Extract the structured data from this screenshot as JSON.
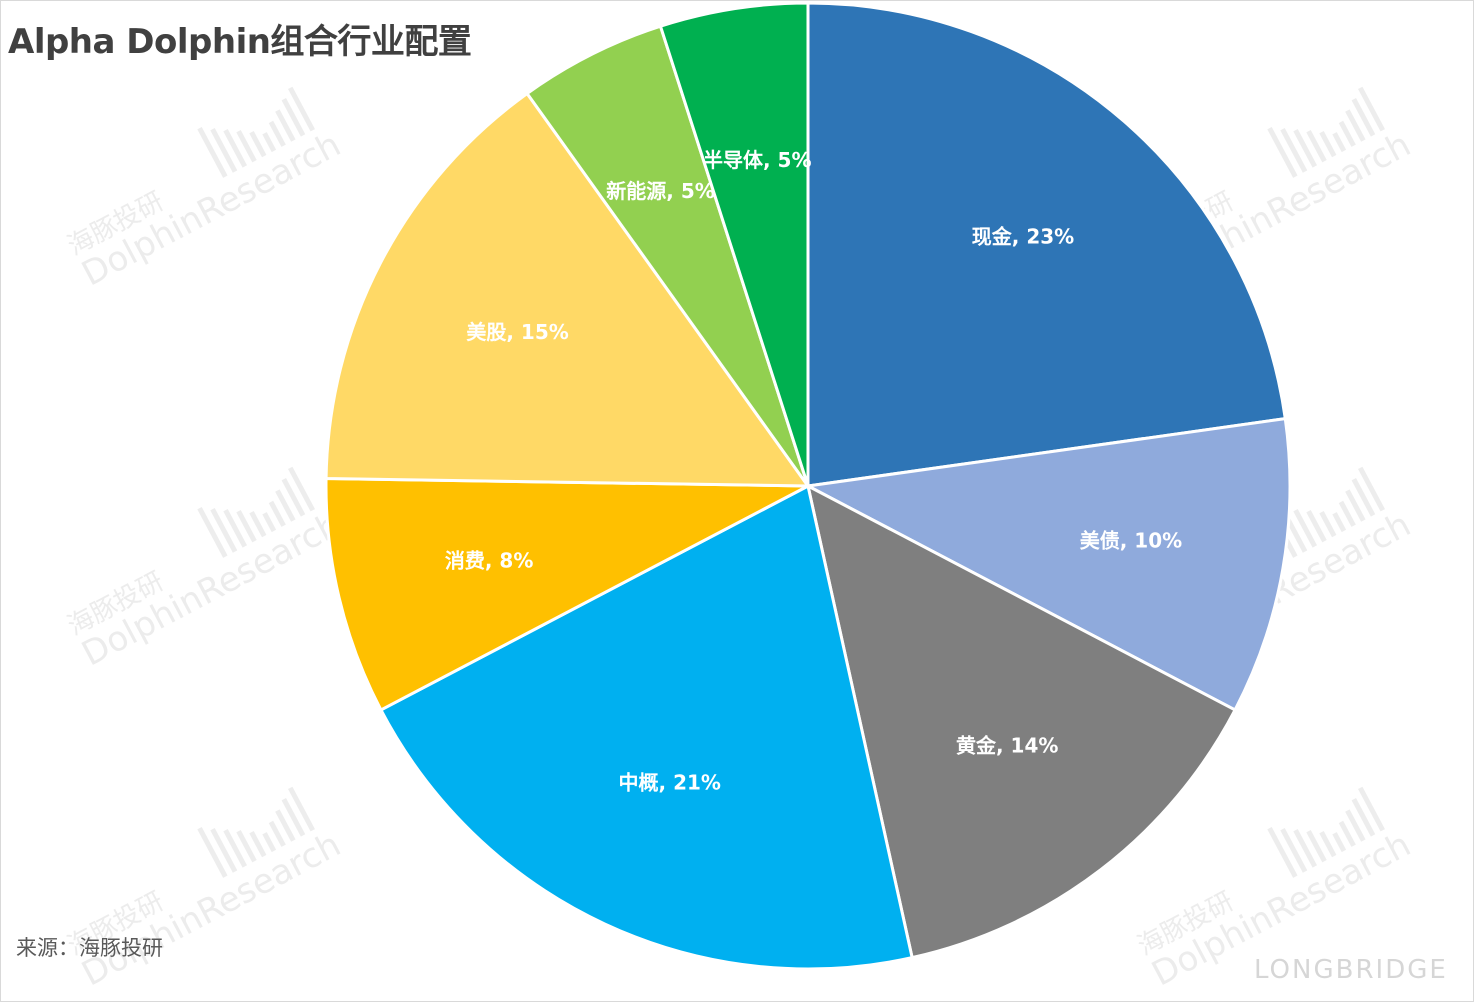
{
  "header": {
    "title": "Alpha Dolphin组合行业配置"
  },
  "footer": {
    "source": "来源：海豚投研",
    "brand": "LONGBRIDGE"
  },
  "watermark": {
    "cn": "海豚投研",
    "en": "DolphinResearch"
  },
  "colors": {
    "slice_border": "#ffffff",
    "title": "#404040"
  },
  "chart_data": {
    "type": "pie",
    "title": "Alpha Dolphin组合行业配置",
    "start": "12 o'clock",
    "direction": "clockwise",
    "slices": [
      {
        "label": "现金, 23%",
        "name": "现金",
        "value": 23,
        "color": "#2E75B6"
      },
      {
        "label": "美债, 10%",
        "name": "美债",
        "value": 10,
        "color": "#8FAADC"
      },
      {
        "label": "黄金, 14%",
        "name": "黄金",
        "value": 14,
        "color": "#7F7F7F"
      },
      {
        "label": "中概, 21%",
        "name": "中概",
        "value": 21,
        "color": "#00B0F0"
      },
      {
        "label": "消费, 8%",
        "name": "消费",
        "value": 8,
        "color": "#FFC000"
      },
      {
        "label": "美股, 15%",
        "name": "美股",
        "value": 15,
        "color": "#FFD966"
      },
      {
        "label": "新能源, 5%",
        "name": "新能源",
        "value": 5,
        "color": "#92D050"
      },
      {
        "label": "半导体, 5%",
        "name": "半导体",
        "value": 5,
        "color": "#00B050"
      }
    ]
  }
}
